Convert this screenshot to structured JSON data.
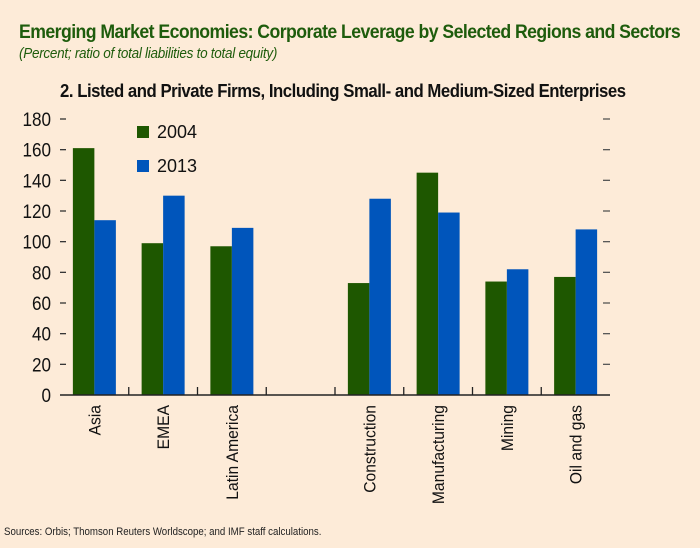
{
  "header": {
    "title": "Emerging Market Economies: Corporate Leverage by Selected Regions and Sectors",
    "subtitle": "(Percent; ratio of total liabilities to total equity)",
    "panel_title": "2. Listed and Private Firms, Including Small- and Medium-Sized Enterprises"
  },
  "footer": {
    "source": "Sources: Orbis; Thomson Reuters Worldscope; and IMF staff calculations."
  },
  "colors": {
    "series_2004": "#1e5700",
    "series_2013": "#0055bb",
    "title": "#1e5c0c",
    "background": "#fdebd8"
  },
  "chart_data": {
    "type": "bar",
    "title": "2. Listed and Private Firms, Including Small- and Medium-Sized Enterprises",
    "xlabel": "",
    "ylabel": "Percent",
    "ylim": [
      0,
      180
    ],
    "yticks": [
      0,
      20,
      40,
      60,
      80,
      100,
      120,
      140,
      160,
      180
    ],
    "grid": false,
    "legend_position": "top-left",
    "categories": [
      "Asia",
      "EMEA",
      "Latin America",
      "",
      "Construction",
      "Manufacturing",
      "Mining",
      "Oil and gas"
    ],
    "series": [
      {
        "name": "2004",
        "color": "#1e5700",
        "values": [
          161,
          99,
          97,
          null,
          73,
          145,
          74,
          77
        ]
      },
      {
        "name": "2013",
        "color": "#0055bb",
        "values": [
          114,
          130,
          109,
          null,
          128,
          119,
          82,
          108
        ]
      }
    ]
  }
}
